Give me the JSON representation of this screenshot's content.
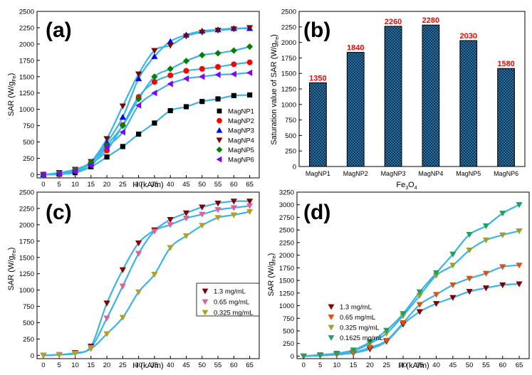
{
  "chart_data": [
    {
      "id": "a",
      "type": "scatter",
      "panel_label": "(a)",
      "xlabel": "H (kA/m)",
      "ylabel_main": "SAR (W/g",
      "ylabel_sub": "Fe",
      "ylabel_end": ")",
      "xlim": [
        -2,
        68
      ],
      "ylim": [
        -50,
        2500
      ],
      "xticks": [
        0,
        5,
        10,
        15,
        20,
        25,
        30,
        35,
        40,
        45,
        50,
        55,
        60,
        65
      ],
      "yticks": [
        0,
        250,
        500,
        750,
        1000,
        1250,
        1500,
        1750,
        2000,
        2250,
        2500
      ],
      "fit_color": "#3cb4e6",
      "x": [
        0,
        5,
        10,
        15,
        20,
        25,
        30,
        35,
        40,
        45,
        50,
        55,
        60,
        65
      ],
      "series": [
        {
          "name": "MagNP1",
          "marker": "square",
          "color": "#000000",
          "values": [
            0,
            5,
            30,
            120,
            270,
            430,
            620,
            790,
            980,
            1040,
            1120,
            1160,
            1210,
            1220
          ]
        },
        {
          "name": "MagNP2",
          "marker": "circle",
          "color": "#ff0000",
          "values": [
            0,
            10,
            60,
            170,
            370,
            760,
            1190,
            1420,
            1520,
            1590,
            1620,
            1650,
            1690,
            1720
          ]
        },
        {
          "name": "MagNP3",
          "marker": "triangle-up",
          "color": "#0000ff",
          "values": [
            0,
            20,
            70,
            180,
            490,
            880,
            1470,
            1810,
            2040,
            2140,
            2200,
            2220,
            2240,
            2240
          ]
        },
        {
          "name": "MagNP4",
          "marker": "triangle-down",
          "color": "#800000",
          "values": [
            0,
            30,
            80,
            200,
            550,
            1050,
            1540,
            1900,
            1980,
            2120,
            2180,
            2210,
            2230,
            2250
          ]
        },
        {
          "name": "MagNP5",
          "marker": "diamond",
          "color": "#008000",
          "values": [
            0,
            25,
            75,
            190,
            450,
            750,
            1160,
            1500,
            1620,
            1740,
            1830,
            1860,
            1900,
            1960
          ]
        },
        {
          "name": "MagNP6",
          "marker": "triangle-left",
          "color": "#8000ff",
          "values": [
            0,
            15,
            50,
            140,
            420,
            650,
            1060,
            1250,
            1390,
            1470,
            1500,
            1530,
            1540,
            1560
          ]
        }
      ]
    },
    {
      "id": "b",
      "type": "bar",
      "panel_label": "(b)",
      "xlabel_main": "Fe",
      "xlabel_sub1": "3",
      "xlabel_mid": "O",
      "xlabel_sub2": "4",
      "ylabel_main": "Saturation value of SAR (W/g",
      "ylabel_sub": "Fe",
      "ylabel_end": ")",
      "ylim": [
        0,
        2500
      ],
      "yticks": [
        0,
        250,
        500,
        750,
        1000,
        1250,
        1500,
        1750,
        2000,
        2250,
        2500
      ],
      "categories": [
        "MagNP1",
        "MagNP2",
        "MagNP3",
        "MagNP4",
        "MagNP5",
        "MagNP6"
      ],
      "values": [
        1350,
        1840,
        2260,
        2280,
        2030,
        1580
      ],
      "value_labels": [
        "1350",
        "1840",
        "2260",
        "2280",
        "2030",
        "1580"
      ],
      "bar_color": "#2f7fb8",
      "label_color": "#ff0000"
    },
    {
      "id": "c",
      "type": "scatter",
      "panel_label": "(c)",
      "xlabel": "H (kA/m)",
      "ylabel_main": "SAR (W/g",
      "ylabel_sub": "Fe",
      "ylabel_end": ")",
      "xlim": [
        -2,
        68
      ],
      "ylim": [
        -50,
        2500
      ],
      "xticks": [
        0,
        5,
        10,
        15,
        20,
        25,
        30,
        35,
        40,
        45,
        50,
        55,
        60,
        65
      ],
      "yticks": [
        0,
        250,
        500,
        750,
        1000,
        1250,
        1500,
        1750,
        2000,
        2250,
        2500
      ],
      "fit_color": "#3cb4e6",
      "x": [
        0,
        5,
        10,
        15,
        20,
        25,
        30,
        35,
        40,
        45,
        50,
        55,
        60,
        65
      ],
      "series": [
        {
          "name": "1.3 mg/mL",
          "marker": "triangle-down",
          "color": "#800000",
          "values": [
            0,
            10,
            40,
            140,
            800,
            1310,
            1720,
            1920,
            2080,
            2180,
            2270,
            2330,
            2360,
            2360
          ]
        },
        {
          "name": "0.65 mg/mL",
          "marker": "triangle-down",
          "color": "#e0609a",
          "values": [
            0,
            10,
            30,
            120,
            570,
            1060,
            1560,
            1900,
            2000,
            2100,
            2160,
            2230,
            2260,
            2290
          ]
        },
        {
          "name": "0.325 mg/mL",
          "marker": "triangle-down",
          "color": "#b5a020",
          "values": [
            0,
            10,
            25,
            100,
            330,
            580,
            970,
            1240,
            1650,
            1830,
            1990,
            2110,
            2150,
            2200
          ]
        }
      ]
    },
    {
      "id": "d",
      "type": "scatter",
      "panel_label": "(d)",
      "xlabel": "H (kA/m)",
      "ylabel_main": "SAR (W/g",
      "ylabel_sub": "Fe",
      "ylabel_end": ")",
      "xlim": [
        -2,
        68
      ],
      "ylim": [
        -50,
        3250
      ],
      "xticks": [
        0,
        5,
        10,
        15,
        20,
        25,
        30,
        35,
        40,
        45,
        50,
        55,
        60,
        65
      ],
      "yticks": [
        0,
        250,
        500,
        750,
        1000,
        1250,
        1500,
        1750,
        2000,
        2250,
        2500,
        2750,
        3000,
        3250
      ],
      "fit_color": "#3cb4e6",
      "x": [
        0,
        5,
        10,
        15,
        20,
        25,
        30,
        35,
        40,
        45,
        50,
        55,
        60,
        65
      ],
      "series": [
        {
          "name": "1.3 mg/mL",
          "marker": "triangle-down",
          "color": "#800000",
          "values": [
            0,
            10,
            30,
            60,
            140,
            290,
            630,
            880,
            1040,
            1160,
            1280,
            1350,
            1410,
            1430
          ]
        },
        {
          "name": "0.65 mg/mL",
          "marker": "triangle-down",
          "color": "#e05010",
          "values": [
            0,
            10,
            30,
            70,
            170,
            310,
            660,
            1020,
            1220,
            1410,
            1540,
            1640,
            1770,
            1800
          ]
        },
        {
          "name": "0.325 mg/mL",
          "marker": "triangle-down",
          "color": "#a0a020",
          "values": [
            0,
            20,
            45,
            100,
            250,
            450,
            800,
            1200,
            1600,
            1800,
            2100,
            2300,
            2400,
            2480
          ]
        },
        {
          "name": "0.1625 mg/mL",
          "marker": "triangle-down",
          "color": "#20a060",
          "values": [
            0,
            25,
            55,
            120,
            280,
            510,
            840,
            1270,
            1650,
            2020,
            2410,
            2580,
            2830,
            3000
          ]
        }
      ]
    }
  ]
}
